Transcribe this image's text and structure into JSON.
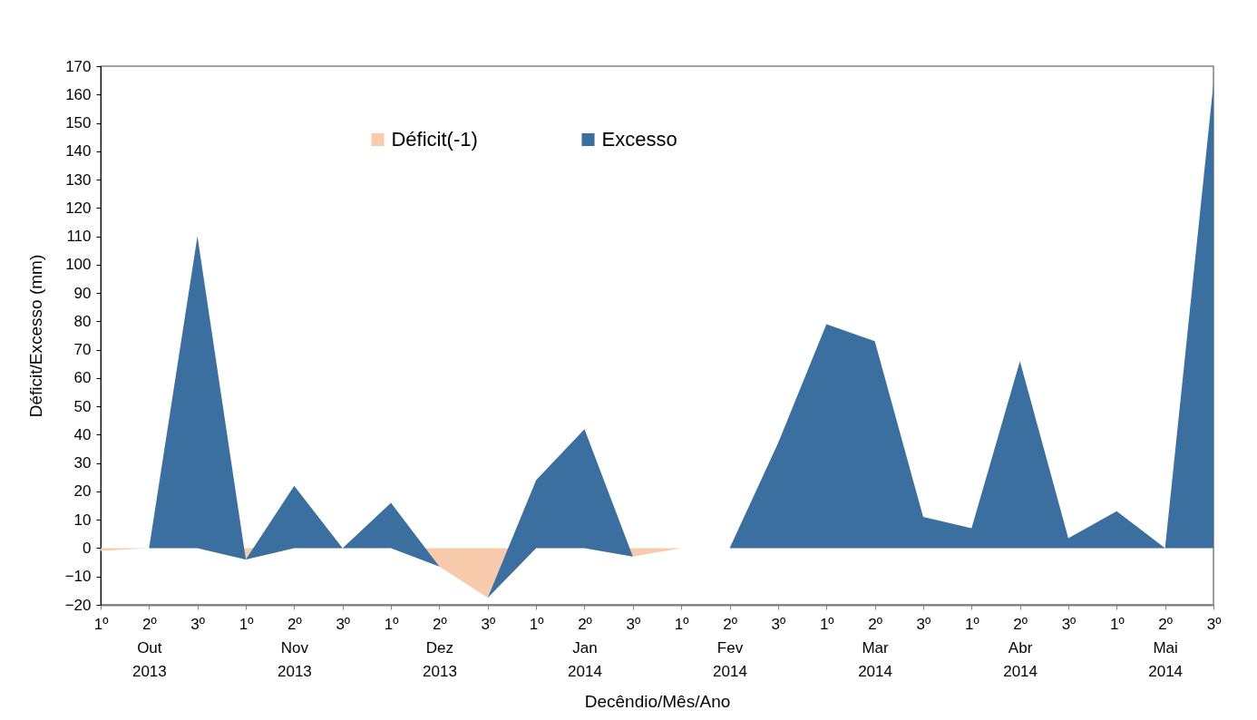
{
  "chart_data": {
    "type": "area",
    "stacked": true,
    "xlabel": "Decêndio/Mês/Ano",
    "ylabel": "Déficit/Excesso (mm)",
    "categories": [
      "1º",
      "2º\nOut\n2013",
      "3º",
      "1º",
      "2º\nNov\n2013",
      "3º",
      "1º",
      "2º\nDez\n2013",
      "3º",
      "1º",
      "2º\nJan\n2014",
      "3º",
      "1º",
      "2º\nFev\n2014",
      "3º",
      "1º",
      "2º\nMar\n2014",
      "3º",
      "1º",
      "2º\nAbr\n2014",
      "3º",
      "1º",
      "2º\nMai\n2014",
      "3º"
    ],
    "series": [
      {
        "name": "Déficit(-1)",
        "color": "#f8cbad",
        "values": [
          -1,
          0,
          0,
          -4,
          0,
          0,
          0,
          -6.5,
          -17.5,
          0,
          0,
          -3,
          0,
          0,
          0,
          0,
          0,
          0,
          0,
          0,
          0,
          0,
          0,
          0
        ]
      },
      {
        "name": "Excesso",
        "color": "#3b6fa0",
        "values": [
          0,
          0,
          110,
          0,
          22,
          0,
          16,
          0,
          0,
          24,
          42,
          0,
          0,
          0,
          37,
          79,
          73,
          11,
          7,
          66,
          3.5,
          13,
          0,
          164
        ]
      }
    ],
    "ylim": [
      -20,
      170
    ],
    "yticks": [
      -20,
      -10,
      0,
      10,
      20,
      30,
      40,
      50,
      60,
      70,
      80,
      90,
      100,
      110,
      120,
      130,
      140,
      150,
      160,
      170
    ],
    "legend": "top",
    "grid": false
  }
}
